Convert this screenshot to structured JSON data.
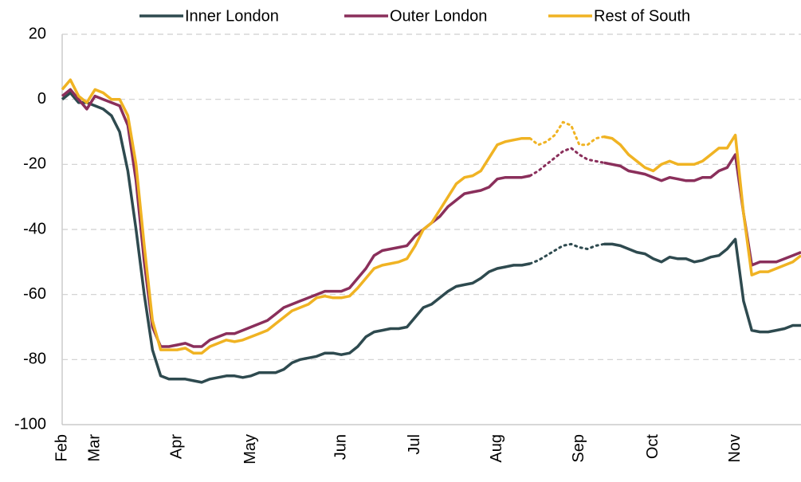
{
  "chart_data": {
    "type": "line",
    "categories": [
      "Feb",
      null,
      null,
      null,
      "Mar",
      null,
      null,
      null,
      null,
      null,
      null,
      null,
      null,
      null,
      "Apr",
      null,
      null,
      null,
      null,
      null,
      null,
      null,
      null,
      "May",
      null,
      null,
      null,
      null,
      null,
      null,
      null,
      null,
      null,
      null,
      "Jun",
      null,
      null,
      null,
      null,
      null,
      null,
      null,
      null,
      "Jul",
      null,
      null,
      null,
      null,
      null,
      null,
      null,
      null,
      null,
      "Aug",
      null,
      null,
      null,
      null,
      null,
      null,
      null,
      null,
      null,
      "Sep",
      null,
      null,
      null,
      null,
      null,
      null,
      null,
      null,
      "Oct",
      null,
      null,
      null,
      null,
      null,
      null,
      null,
      null,
      null,
      "Nov",
      null,
      null,
      null,
      null,
      null,
      null,
      null,
      null
    ],
    "ylim": [
      -100,
      20
    ],
    "yticks": [
      -100,
      -80,
      -60,
      -40,
      -20,
      0,
      20
    ],
    "grid": true,
    "legend": "top",
    "series": [
      {
        "name": "Inner London",
        "color": "#2e4a4f",
        "values": [
          0,
          2,
          -1,
          -1,
          -2,
          -3,
          -5,
          -10,
          -22,
          -40,
          -60,
          -77,
          -85,
          -86,
          -86,
          -86,
          -86.5,
          -87,
          -86,
          -85.5,
          -85,
          -85,
          -85.5,
          -85,
          -84,
          -84,
          -84,
          -83,
          -81,
          -80,
          -79.5,
          -79,
          -78,
          -78,
          -78.5,
          -78,
          -76,
          -73,
          -71.5,
          -71,
          -70.5,
          -70.5,
          -70,
          -67,
          -64,
          -63,
          -61,
          -59,
          -57.5,
          -57,
          -56.5,
          -55,
          -53,
          -52,
          -51.5,
          -51,
          -51,
          -50.5,
          null,
          null,
          null,
          null,
          null,
          null,
          null,
          null,
          -44.5,
          -44.5,
          -45,
          -46,
          -47,
          -47.5,
          -49,
          -50,
          -48.5,
          -49,
          -49,
          -50,
          -49.5,
          -48.5,
          -48,
          -46,
          -43,
          -62,
          -71,
          -71.5,
          -71.5,
          -71,
          -70.5,
          -69.5,
          -69.5
        ],
        "dotted_values": [
          null,
          null,
          null,
          null,
          null,
          null,
          null,
          null,
          null,
          null,
          null,
          null,
          null,
          null,
          null,
          null,
          null,
          null,
          null,
          null,
          null,
          null,
          null,
          null,
          null,
          null,
          null,
          null,
          null,
          null,
          null,
          null,
          null,
          null,
          null,
          null,
          null,
          null,
          null,
          null,
          null,
          null,
          null,
          null,
          null,
          null,
          null,
          null,
          null,
          null,
          null,
          null,
          null,
          null,
          null,
          null,
          null,
          -50.5,
          -49.5,
          -48,
          -46.5,
          -45,
          -44.5,
          -45.5,
          -46,
          -45,
          -44.5,
          null,
          null,
          null,
          null,
          null,
          null,
          null,
          null,
          null,
          null,
          null,
          null,
          null,
          null,
          null,
          null,
          null,
          null,
          null,
          null,
          null,
          null,
          null
        ]
      },
      {
        "name": "Outer London",
        "color": "#8a2f5b",
        "values": [
          1,
          3,
          0,
          -3,
          1,
          0,
          -1,
          -2,
          -8,
          -25,
          -50,
          -70,
          -76,
          -76,
          -75.5,
          -75,
          -76,
          -76,
          -74,
          -73,
          -72,
          -72,
          -71,
          -70,
          -69,
          -68,
          -66,
          -64,
          -63,
          -62,
          -61,
          -60,
          -59,
          -59,
          -59,
          -58,
          -55,
          -52,
          -48,
          -46.5,
          -46,
          -45.5,
          -45,
          -42,
          -40,
          -38,
          -36,
          -33,
          -31,
          -29,
          -28.5,
          -28,
          -27,
          -24.5,
          -24,
          -24,
          -24,
          -23.5,
          null,
          null,
          null,
          null,
          null,
          null,
          null,
          null,
          -19.5,
          -20,
          -20.5,
          -22,
          -22.5,
          -23,
          -24,
          -25,
          -24,
          -24.5,
          -25,
          -25,
          -24,
          -24,
          -22,
          -21,
          -17,
          -35,
          -51,
          -50,
          -50,
          -50,
          -49,
          -48,
          -47
        ],
        "dotted_values": [
          null,
          null,
          null,
          null,
          null,
          null,
          null,
          null,
          null,
          null,
          null,
          null,
          null,
          null,
          null,
          null,
          null,
          null,
          null,
          null,
          null,
          null,
          null,
          null,
          null,
          null,
          null,
          null,
          null,
          null,
          null,
          null,
          null,
          null,
          null,
          null,
          null,
          null,
          null,
          null,
          null,
          null,
          null,
          null,
          null,
          null,
          null,
          null,
          null,
          null,
          null,
          null,
          null,
          null,
          null,
          null,
          null,
          -23.5,
          -22,
          -20,
          -18,
          -16,
          -15,
          -17,
          -18.5,
          -19,
          -19.5,
          null,
          null,
          null,
          null,
          null,
          null,
          null,
          null,
          null,
          null,
          null,
          null,
          null,
          null,
          null,
          null,
          null,
          null,
          null,
          null,
          null,
          null,
          null
        ]
      },
      {
        "name": "Rest of South",
        "color": "#f0b323",
        "values": [
          3,
          6,
          1,
          -1,
          3,
          2,
          0,
          0,
          -5,
          -20,
          -45,
          -68,
          -77,
          -77,
          -77,
          -76.5,
          -78,
          -78,
          -76,
          -75,
          -74,
          -74.5,
          -74,
          -73,
          -72,
          -71,
          -69,
          -67,
          -65,
          -64,
          -63,
          -61,
          -60.5,
          -61,
          -61,
          -60.5,
          -58,
          -55,
          -52,
          -51,
          -50.5,
          -50,
          -49,
          -45,
          -40,
          -38,
          -34,
          -30,
          -26,
          -24,
          -23.5,
          -22,
          -18,
          -14,
          -13,
          -12.5,
          -12,
          -12,
          null,
          null,
          null,
          null,
          null,
          null,
          null,
          null,
          -11.5,
          -12,
          -14,
          -17,
          -19,
          -21,
          -22,
          -20,
          -19,
          -20,
          -20,
          -20,
          -19,
          -17,
          -15,
          -15,
          -11,
          -35,
          -54,
          -53,
          -53,
          -52,
          -51,
          -50,
          -48
        ],
        "dotted_values": [
          null,
          null,
          null,
          null,
          null,
          null,
          null,
          null,
          null,
          null,
          null,
          null,
          null,
          null,
          null,
          null,
          null,
          null,
          null,
          null,
          null,
          null,
          null,
          null,
          null,
          null,
          null,
          null,
          null,
          null,
          null,
          null,
          null,
          null,
          null,
          null,
          null,
          null,
          null,
          null,
          null,
          null,
          null,
          null,
          null,
          null,
          null,
          null,
          null,
          null,
          null,
          null,
          null,
          null,
          null,
          null,
          null,
          -12,
          -14,
          -13,
          -11,
          -7,
          -8,
          -14,
          -14,
          -12,
          -11.5,
          null,
          null,
          null,
          null,
          null,
          null,
          null,
          null,
          null,
          null,
          null,
          null,
          null,
          null,
          null,
          null,
          null,
          null,
          null,
          null,
          null,
          null,
          null
        ]
      }
    ]
  }
}
